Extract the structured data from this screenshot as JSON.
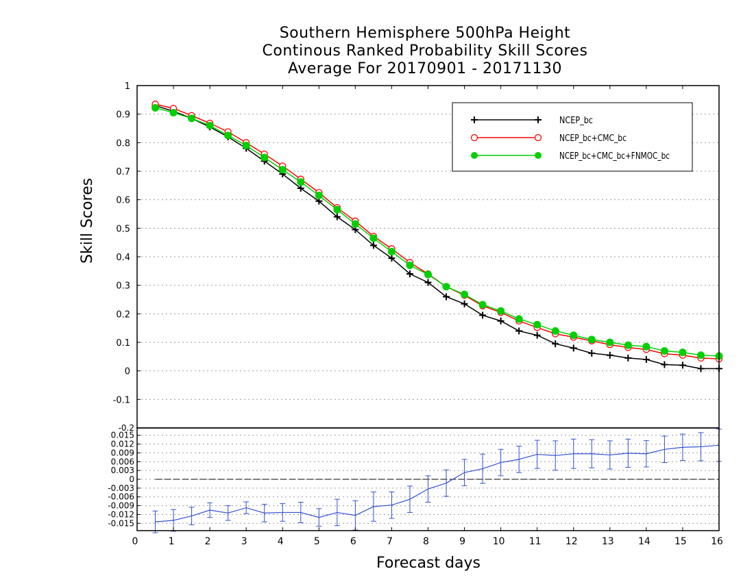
{
  "chart_data": [
    {
      "type": "line",
      "title": [
        "Southern Hemisphere 500hPa Height",
        "Continous Ranked Probability Skill Scores",
        "Average For 20170901 - 20171130"
      ],
      "xlabel": "Forecast days",
      "ylabel": "Skill Scores",
      "xlim": [
        0,
        16
      ],
      "ylim": [
        -0.2,
        1
      ],
      "xticks": [
        "0",
        "1",
        "2",
        "3",
        "4",
        "5",
        "6",
        "7",
        "8",
        "9",
        "10",
        "11",
        "12",
        "13",
        "14",
        "15",
        "16"
      ],
      "yticks": [
        "-0.2",
        "-0.1",
        "0",
        "0.1",
        "0.2",
        "0.3",
        "0.4",
        "0.5",
        "0.6",
        "0.7",
        "0.8",
        "0.9",
        "1"
      ],
      "grid": true,
      "legend_position": "top-right",
      "x": [
        0.5,
        1,
        1.5,
        2,
        2.5,
        3,
        3.5,
        4,
        4.5,
        5,
        5.5,
        6,
        6.5,
        7,
        7.5,
        8,
        8.5,
        9,
        9.5,
        10,
        10.5,
        11,
        11.5,
        12,
        12.5,
        13,
        13.5,
        14,
        14.5,
        15,
        15.5,
        16
      ],
      "series": [
        {
          "name": "NCEP_bc",
          "color": "#000000",
          "marker": "plus",
          "values": [
            0.93,
            0.91,
            0.885,
            0.855,
            0.82,
            0.78,
            0.735,
            0.69,
            0.64,
            0.595,
            0.54,
            0.495,
            0.44,
            0.395,
            0.34,
            0.31,
            0.26,
            0.235,
            0.195,
            0.175,
            0.14,
            0.125,
            0.095,
            0.08,
            0.062,
            0.055,
            0.045,
            0.04,
            0.022,
            0.02,
            0.008,
            0.008
          ]
        },
        {
          "name": "NCEP_bc+CMC_bc",
          "color": "#ff0000",
          "marker": "circle-open",
          "values": [
            0.935,
            0.92,
            0.895,
            0.868,
            0.838,
            0.8,
            0.76,
            0.718,
            0.672,
            0.625,
            0.572,
            0.525,
            0.472,
            0.428,
            0.38,
            0.34,
            0.295,
            0.265,
            0.228,
            0.205,
            0.175,
            0.152,
            0.13,
            0.118,
            0.105,
            0.092,
            0.082,
            0.075,
            0.06,
            0.055,
            0.045,
            0.042
          ]
        },
        {
          "name": "NCEP_bc+CMC_bc+FNMOC_bc",
          "color": "#00d000",
          "marker": "circle-filled",
          "values": [
            0.922,
            0.905,
            0.885,
            0.86,
            0.825,
            0.79,
            0.748,
            0.705,
            0.662,
            0.615,
            0.565,
            0.515,
            0.465,
            0.418,
            0.37,
            0.338,
            0.295,
            0.268,
            0.232,
            0.21,
            0.182,
            0.162,
            0.14,
            0.125,
            0.11,
            0.1,
            0.09,
            0.085,
            0.07,
            0.065,
            0.055,
            0.052
          ]
        }
      ]
    },
    {
      "type": "line",
      "xlabel": "Forecast days",
      "xlim": [
        0,
        16
      ],
      "ylim": [
        -0.0175,
        0.0175
      ],
      "yticks": [
        "-0.015",
        "-0.012",
        "-0.009",
        "-0.006",
        "-0.003",
        "0",
        "0.003",
        "0.006",
        "0.009",
        "0.012",
        "0.015"
      ],
      "top_label": "-0.2",
      "grid": true,
      "x": [
        0.5,
        1,
        1.5,
        2,
        2.5,
        3,
        3.5,
        4,
        4.5,
        5,
        5.5,
        6,
        6.5,
        7,
        7.5,
        8,
        8.5,
        9,
        9.5,
        10,
        10.5,
        11,
        11.5,
        12,
        12.5,
        13,
        13.5,
        14,
        14.5,
        15,
        15.5,
        16
      ],
      "series": [
        {
          "name": "",
          "color": "#3050d0",
          "values": [
            -0.0145,
            -0.014,
            -0.0125,
            -0.0105,
            -0.0115,
            -0.0097,
            -0.0115,
            -0.0113,
            -0.0113,
            -0.013,
            -0.0113,
            -0.0123,
            -0.0093,
            -0.0088,
            -0.0068,
            -0.0033,
            -0.0013,
            0.0023,
            0.0036,
            0.0057,
            0.0068,
            0.0085,
            0.0081,
            0.0087,
            0.0087,
            0.0083,
            0.0089,
            0.0087,
            0.0102,
            0.0109,
            0.0111,
            0.0116
          ],
          "err": [
            0.0037,
            0.0037,
            0.003,
            0.0025,
            0.0025,
            0.002,
            0.003,
            0.003,
            0.0035,
            0.003,
            0.0045,
            0.005,
            0.005,
            0.0045,
            0.0045,
            0.0045,
            0.0045,
            0.0045,
            0.005,
            0.0045,
            0.0045,
            0.0048,
            0.005,
            0.005,
            0.0048,
            0.0048,
            0.0048,
            0.0045,
            0.0045,
            0.0045,
            0.0048,
            0.0055
          ]
        }
      ]
    }
  ]
}
